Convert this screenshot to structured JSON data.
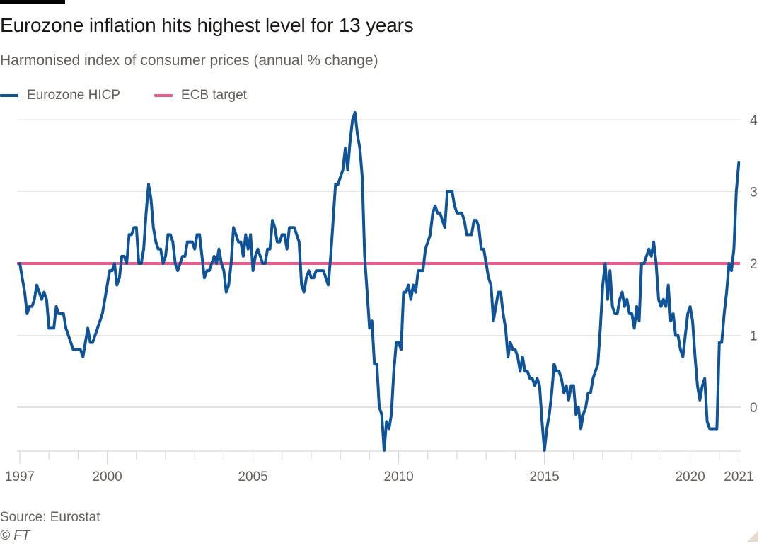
{
  "header": {
    "title": "Eurozone inflation hits highest level for 13 years",
    "subtitle": "Harmonised index of consumer prices (annual % change)"
  },
  "legend": [
    {
      "label": "Eurozone HICP",
      "color": "#0f5499"
    },
    {
      "label": "ECB target",
      "color": "#e95d8c"
    }
  ],
  "footer": {
    "source": "Source: Eurostat",
    "copyright": "© FT"
  },
  "chart_data": {
    "type": "line",
    "title": "Eurozone inflation hits highest level for 13 years",
    "subtitle": "Harmonised index of consumer prices (annual % change)",
    "xlabel": "",
    "ylabel": "",
    "x_start": "1997-01",
    "x_frequency": "monthly",
    "xlim": [
      1997.0,
      2021.67
    ],
    "ylim": [
      -0.6,
      4.1
    ],
    "y_ticks": [
      0,
      1,
      2,
      3,
      4
    ],
    "y_axis_side": "right",
    "x_ticks": [
      {
        "year": 1997,
        "label": "1997"
      },
      {
        "year": 1998,
        "label": ""
      },
      {
        "year": 1999,
        "label": ""
      },
      {
        "year": 2000,
        "label": "2000"
      },
      {
        "year": 2001,
        "label": ""
      },
      {
        "year": 2002,
        "label": ""
      },
      {
        "year": 2003,
        "label": ""
      },
      {
        "year": 2004,
        "label": ""
      },
      {
        "year": 2005,
        "label": "2005"
      },
      {
        "year": 2006,
        "label": ""
      },
      {
        "year": 2007,
        "label": ""
      },
      {
        "year": 2008,
        "label": ""
      },
      {
        "year": 2009,
        "label": ""
      },
      {
        "year": 2010,
        "label": "2010"
      },
      {
        "year": 2011,
        "label": ""
      },
      {
        "year": 2012,
        "label": ""
      },
      {
        "year": 2013,
        "label": ""
      },
      {
        "year": 2014,
        "label": ""
      },
      {
        "year": 2015,
        "label": "2015"
      },
      {
        "year": 2016,
        "label": ""
      },
      {
        "year": 2017,
        "label": ""
      },
      {
        "year": 2018,
        "label": ""
      },
      {
        "year": 2019,
        "label": ""
      },
      {
        "year": 2020,
        "label": "2020"
      },
      {
        "year": 2021,
        "label": ""
      },
      {
        "year": 2021.67,
        "label": "2021"
      }
    ],
    "grid": true,
    "legend_position": "top-left",
    "series": [
      {
        "name": "Eurozone HICP",
        "color": "#0f5499",
        "values": [
          2.0,
          1.8,
          1.6,
          1.3,
          1.4,
          1.4,
          1.5,
          1.7,
          1.6,
          1.5,
          1.6,
          1.5,
          1.1,
          1.1,
          1.1,
          1.4,
          1.3,
          1.3,
          1.3,
          1.1,
          1.0,
          0.9,
          0.8,
          0.8,
          0.8,
          0.8,
          0.7,
          0.9,
          1.1,
          0.9,
          0.9,
          1.0,
          1.1,
          1.2,
          1.3,
          1.5,
          1.7,
          1.9,
          1.9,
          2.0,
          1.7,
          1.8,
          2.1,
          2.1,
          2.0,
          2.4,
          2.4,
          2.5,
          2.5,
          2.0,
          2.0,
          2.2,
          2.7,
          3.1,
          2.9,
          2.5,
          2.3,
          2.2,
          2.2,
          2.0,
          2.1,
          2.4,
          2.4,
          2.3,
          2.0,
          1.9,
          2.0,
          2.1,
          2.1,
          2.3,
          2.3,
          2.3,
          2.2,
          2.4,
          2.4,
          2.1,
          1.8,
          1.9,
          1.9,
          2.0,
          2.1,
          2.0,
          2.2,
          2.0,
          1.9,
          1.6,
          1.7,
          2.0,
          2.5,
          2.4,
          2.3,
          2.3,
          2.1,
          2.4,
          2.2,
          2.4,
          1.9,
          2.1,
          2.2,
          2.1,
          2.0,
          2.0,
          2.2,
          2.2,
          2.6,
          2.5,
          2.3,
          2.3,
          2.4,
          2.4,
          2.2,
          2.5,
          2.5,
          2.5,
          2.4,
          2.3,
          1.7,
          1.6,
          1.8,
          1.9,
          1.8,
          1.8,
          1.9,
          1.9,
          1.9,
          1.9,
          1.8,
          1.7,
          2.1,
          2.6,
          3.1,
          3.1,
          3.2,
          3.3,
          3.6,
          3.3,
          3.7,
          4.0,
          4.1,
          3.8,
          3.6,
          3.2,
          2.1,
          1.6,
          1.1,
          1.2,
          0.6,
          0.6,
          0.0,
          -0.1,
          -0.6,
          -0.2,
          -0.3,
          -0.1,
          0.5,
          0.9,
          0.9,
          0.8,
          1.6,
          1.6,
          1.7,
          1.5,
          1.7,
          1.6,
          1.9,
          1.9,
          1.9,
          2.2,
          2.3,
          2.4,
          2.7,
          2.8,
          2.7,
          2.7,
          2.6,
          2.5,
          3.0,
          3.0,
          3.0,
          2.8,
          2.7,
          2.7,
          2.7,
          2.6,
          2.4,
          2.4,
          2.4,
          2.6,
          2.6,
          2.5,
          2.2,
          2.2,
          2.0,
          1.8,
          1.7,
          1.2,
          1.4,
          1.6,
          1.6,
          1.3,
          1.1,
          0.7,
          0.9,
          0.8,
          0.8,
          0.7,
          0.5,
          0.7,
          0.5,
          0.5,
          0.4,
          0.4,
          0.3,
          0.4,
          0.3,
          -0.2,
          -0.6,
          -0.3,
          -0.1,
          0.2,
          0.6,
          0.5,
          0.5,
          0.4,
          0.2,
          0.3,
          0.1,
          0.3,
          0.3,
          -0.1,
          0.0,
          -0.3,
          -0.1,
          0.0,
          0.2,
          0.2,
          0.4,
          0.5,
          0.6,
          1.1,
          1.7,
          2.0,
          1.5,
          1.9,
          1.4,
          1.3,
          1.3,
          1.5,
          1.6,
          1.4,
          1.5,
          1.3,
          1.3,
          1.1,
          1.4,
          1.2,
          2.0,
          2.0,
          2.1,
          2.2,
          2.1,
          2.3,
          2.0,
          1.5,
          1.4,
          1.5,
          1.4,
          1.7,
          1.2,
          1.3,
          1.0,
          1.0,
          0.8,
          0.7,
          1.0,
          1.3,
          1.4,
          1.2,
          0.7,
          0.3,
          0.1,
          0.3,
          0.4,
          -0.2,
          -0.3,
          -0.3,
          -0.3,
          -0.3,
          0.9,
          0.9,
          1.3,
          1.6,
          2.0,
          1.9,
          2.2,
          3.0,
          3.4
        ]
      },
      {
        "name": "ECB target",
        "color": "#e95d8c",
        "values": [
          2.0,
          2.0
        ]
      }
    ]
  }
}
